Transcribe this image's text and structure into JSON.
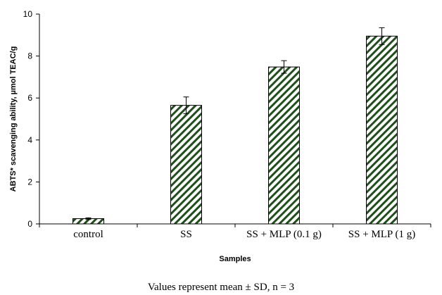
{
  "chart_data": {
    "type": "bar",
    "categories": [
      "control",
      "SS",
      "SS + MLP (0.1 g)",
      "SS + MLP (1 g)"
    ],
    "values": [
      0.25,
      5.65,
      7.48,
      8.95
    ],
    "errors": [
      0.04,
      0.4,
      0.3,
      0.4
    ],
    "xlabel": "Samples",
    "ylabel": "ABTS* scavenging ability, µmol TEAC/g",
    "ylim": [
      0,
      10
    ],
    "yticks": [
      0,
      2,
      4,
      6,
      8,
      10
    ],
    "grid": false,
    "bar_fill": "diagonal-hatch",
    "bar_color": "#1f4f1a",
    "note": "Values represent mean ± SD, n = 3"
  }
}
